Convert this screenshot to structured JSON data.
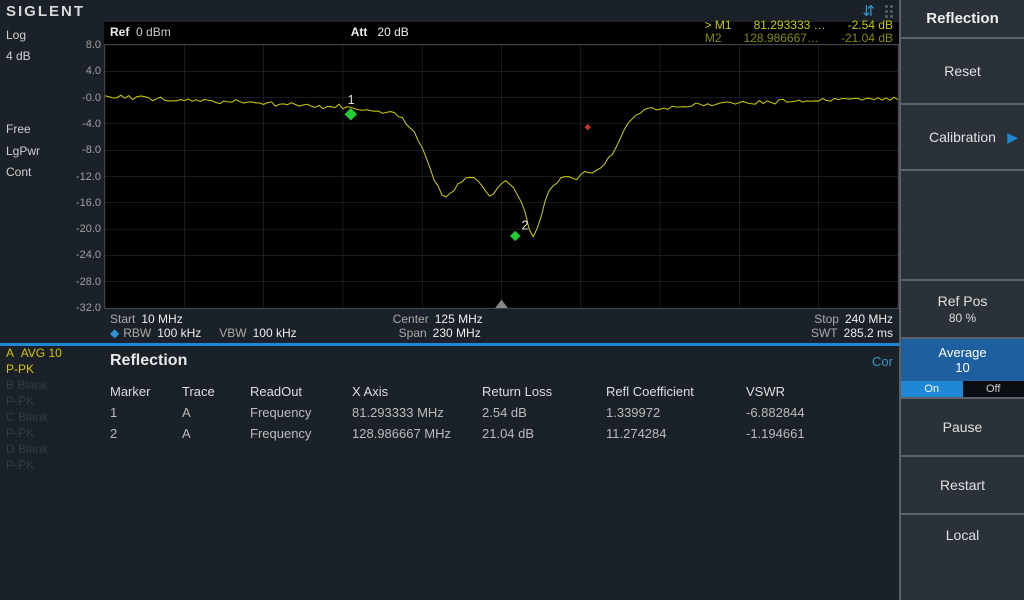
{
  "brand": "SIGLENT",
  "left_status": {
    "line1": "Log",
    "line2": "4 dB",
    "line3": "Free",
    "line4": "LgPwr",
    "line5": "Cont"
  },
  "plot_header": {
    "ref_label": "Ref",
    "ref_value": "0 dBm",
    "att_label": "Att",
    "att_value": "20 dB"
  },
  "markers_top": {
    "m1": {
      "tag": "> M1",
      "freq": "81.293333 …",
      "amp": "-2.54 dB"
    },
    "m2": {
      "tag": "M2",
      "freq": "128.986667…",
      "amp": "-21.04 dB"
    }
  },
  "chart": {
    "type": "line",
    "xlim_mhz": [
      10,
      240
    ],
    "ylim_db": [
      -32,
      8
    ],
    "ytick_step": 4,
    "ylabels": [
      "8.0",
      "4.0",
      "-0.0",
      "-4.0",
      "-8.0",
      "-12.0",
      "-16.0",
      "-20.0",
      "-24.0",
      "-28.0",
      "-32.0"
    ],
    "grid_color": "#333333",
    "trace_color": "#c8c800",
    "background_color": "#000000",
    "marker_colors": {
      "selected": "#22cc33",
      "normal": "#cc3322"
    },
    "marker1": {
      "label": "1",
      "x_mhz": 81.293333,
      "y_db": -2.54
    },
    "marker2": {
      "label": "2",
      "x_mhz": 128.986667,
      "y_db": -21.04
    },
    "series_db": [
      0.2,
      0.1,
      0.0,
      -0.1,
      0.1,
      0.2,
      0.0,
      -0.2,
      -0.1,
      0.0,
      0.1,
      -0.3,
      -0.2,
      0.0,
      -0.1,
      -0.3,
      -0.4,
      -0.2,
      -0.3,
      -0.2,
      -0.4,
      -0.3,
      -0.5,
      -0.4,
      -0.3,
      -0.5,
      -0.6,
      -0.4,
      -0.5,
      -0.7,
      -0.6,
      -0.5,
      -0.7,
      -0.6,
      -0.8,
      -0.7,
      -0.9,
      -0.8,
      -0.7,
      -0.9,
      -0.8,
      -1.0,
      -0.9,
      -1.1,
      -1.0,
      -0.9,
      -1.1,
      -1.0,
      -1.2,
      -1.1,
      -1.3,
      -1.2,
      -1.1,
      -1.3,
      -1.2,
      -1.4,
      -1.3,
      -1.5,
      -1.4,
      -1.3,
      -1.5,
      -1.4,
      -1.6,
      -1.7,
      -1.6,
      -1.8,
      -1.7,
      -1.9,
      -2.0,
      -1.9,
      -2.1,
      -2.2,
      -2.4,
      -2.54,
      -2.8,
      -3.2,
      -3.8,
      -4.5,
      -5.4,
      -6.5,
      -7.8,
      -9.2,
      -10.8,
      -12.3,
      -13.6,
      -14.6,
      -15.0,
      -14.6,
      -14.0,
      -13.2,
      -12.6,
      -12.2,
      -12.0,
      -12.1,
      -12.6,
      -13.4,
      -14.2,
      -14.8,
      -14.6,
      -14.0,
      -13.2,
      -12.8,
      -13.0,
      -13.6,
      -14.6,
      -16.0,
      -17.8,
      -19.8,
      -21.04,
      -20.0,
      -18.0,
      -16.0,
      -14.4,
      -13.4,
      -12.8,
      -12.4,
      -12.0,
      -12.1,
      -12.4,
      -12.2,
      -11.8,
      -11.4,
      -11.2,
      -11.4,
      -11.2,
      -10.8,
      -10.2,
      -9.4,
      -8.4,
      -7.2,
      -6.0,
      -4.8,
      -3.8,
      -3.0,
      -2.6,
      -2.2,
      -2.0,
      -1.8,
      -1.7,
      -1.6,
      -1.5,
      -1.4,
      -1.5,
      -1.3,
      -1.4,
      -1.3,
      -1.2,
      -1.3,
      -1.2,
      -1.1,
      -1.2,
      -1.1,
      -1.0,
      -1.1,
      -1.0,
      -0.9,
      -1.0,
      -0.9,
      -0.8,
      -0.9,
      -0.8,
      -0.7,
      -0.8,
      -0.7,
      -0.8,
      -0.7,
      -0.6,
      -0.7,
      -0.6,
      -0.7,
      -0.6,
      -0.5,
      -0.6,
      -0.5,
      -0.6,
      -0.5,
      -0.4,
      -0.5,
      -0.4,
      -0.5,
      -0.4,
      -0.3,
      -0.4,
      -0.3,
      -0.4,
      -0.3,
      -0.2,
      -0.3,
      -0.2,
      -0.3,
      -0.2,
      -0.3,
      -0.2,
      -0.1,
      -0.2,
      -0.1,
      -0.2,
      -0.1,
      -0.2,
      -0.1,
      -0.2
    ]
  },
  "freq_info": {
    "start_label": "Start",
    "start_value": "10 MHz",
    "center_label": "Center",
    "center_value": "125 MHz",
    "stop_label": "Stop",
    "stop_value": "240 MHz",
    "rbw_label": "RBW",
    "rbw_value": "100 kHz",
    "vbw_label": "VBW",
    "vbw_value": "100 kHz",
    "span_label": "Span",
    "span_value": "230 MHz",
    "swt_label": "SWT",
    "swt_value": "285.2 ms"
  },
  "trace_panel": {
    "active": {
      "letter": "A",
      "mode": "AVG  10",
      "det": "P-PK"
    },
    "rows": [
      {
        "letter": "B",
        "mode": "Blank",
        "det": "P-PK"
      },
      {
        "letter": "C",
        "mode": "Blank",
        "det": "P-PK"
      },
      {
        "letter": "D",
        "mode": "Blank",
        "det": "P-PK"
      }
    ]
  },
  "reflection": {
    "title": "Reflection",
    "cor": "Cor",
    "columns": {
      "c1": "Marker",
      "c2": "Trace",
      "c3": "ReadOut",
      "c4": "X Axis",
      "c5": "Return Loss",
      "c6": "Refl Coefficient",
      "c7": "VSWR"
    },
    "rows": [
      {
        "marker": "1",
        "trace": "A",
        "readout": "Frequency",
        "xaxis": "81.293333 MHz",
        "rloss": "2.54 dB",
        "rcoef": "1.339972",
        "vswr": "-6.882844"
      },
      {
        "marker": "2",
        "trace": "A",
        "readout": "Frequency",
        "xaxis": "128.986667 MHz",
        "rloss": "21.04 dB",
        "rcoef": "11.274284",
        "vswr": "-1.194661"
      }
    ]
  },
  "menu": {
    "title": "Reflection",
    "reset": "Reset",
    "calibration": "Calibration",
    "refpos_label": "Ref Pos",
    "refpos_value": "80 %",
    "average_label": "Average",
    "average_value": "10",
    "on": "On",
    "off": "Off",
    "pause": "Pause",
    "restart": "Restart",
    "local": "Local"
  }
}
